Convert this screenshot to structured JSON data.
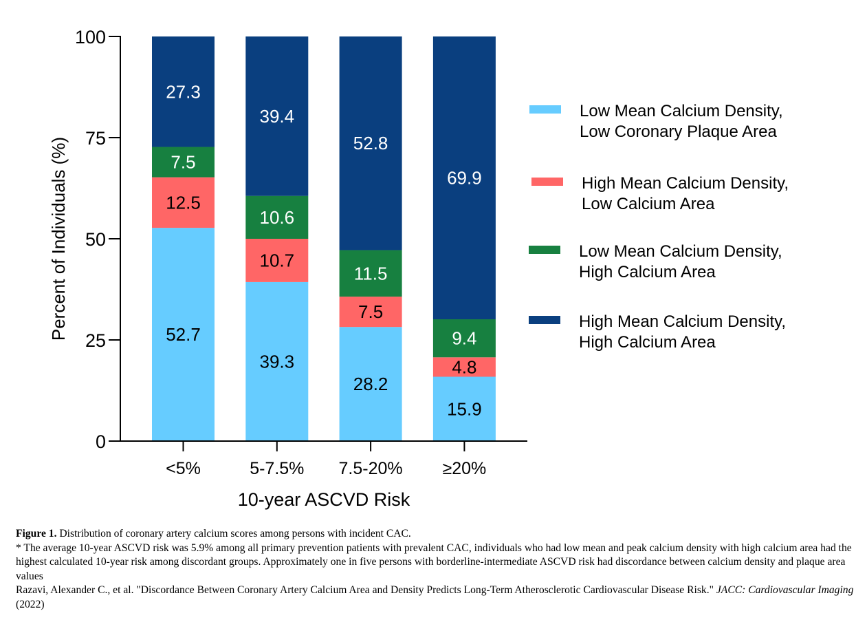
{
  "chart_data": {
    "type": "bar",
    "stacked": true,
    "title": "",
    "xlabel": "10-year ASCVD Risk",
    "ylabel": "Percent of Individuals (%)",
    "ylim": [
      0,
      100
    ],
    "yticks": [
      0,
      25,
      50,
      75,
      100
    ],
    "grid": false,
    "legend_position": "right",
    "categories": [
      "<5%",
      "5-7.5%",
      "7.5-20%",
      "≥20%"
    ],
    "series": [
      {
        "name": "Low Mean Calcium Density, Low Coronary Plaque Area",
        "legend_lines": [
          "Low Mean Calcium Density,",
          "Low Coronary Plaque Area"
        ],
        "color": "#66CCFF",
        "label_color": "#000000",
        "values": [
          52.7,
          39.3,
          28.2,
          15.9
        ]
      },
      {
        "name": "High Mean Calcium Density, Low Calcium Area",
        "legend_lines": [
          "High Mean Calcium Density,",
          "Low Calcium Area"
        ],
        "color": "#FF6666",
        "label_color": "#000000",
        "values": [
          12.5,
          10.7,
          7.5,
          4.8
        ]
      },
      {
        "name": "Low Mean Calcium Density, High Calcium Area",
        "legend_lines": [
          "Low Mean Calcium Density,",
          "High Calcium Area"
        ],
        "color": "#178040",
        "label_color": "#ffffff",
        "values": [
          7.5,
          10.6,
          11.5,
          9.4
        ]
      },
      {
        "name": "High Mean Calcium Density, High Calcium Area",
        "legend_lines": [
          "High Mean Calcium Density,",
          "High Calcium Area"
        ],
        "color": "#0A3F7F",
        "label_color": "#ffffff",
        "values": [
          27.3,
          39.4,
          52.8,
          69.9
        ]
      }
    ]
  },
  "caption": {
    "figure_label": "Figure 1.",
    "figure_text": " Distribution of coronary artery calcium scores among persons with incident CAC.",
    "note": "* The average 10-year ASCVD risk was 5.9% among all primary prevention patients with prevalent CAC, individuals who had low mean and peak calcium density with high calcium area had the highest calculated 10-year risk among discordant groups. Approximately one in five persons with borderline-intermediate ASCVD risk had discordance between calcium density and plaque area values",
    "citation_text": "Razavi, Alexander C., et al. \"Discordance Between Coronary Artery Calcium Area and Density Predicts Long-Term Atherosclerotic Cardiovascular Disease Risk.\" ",
    "citation_journal": "JACC: Cardiovascular Imaging",
    "citation_year": " (2022)"
  }
}
